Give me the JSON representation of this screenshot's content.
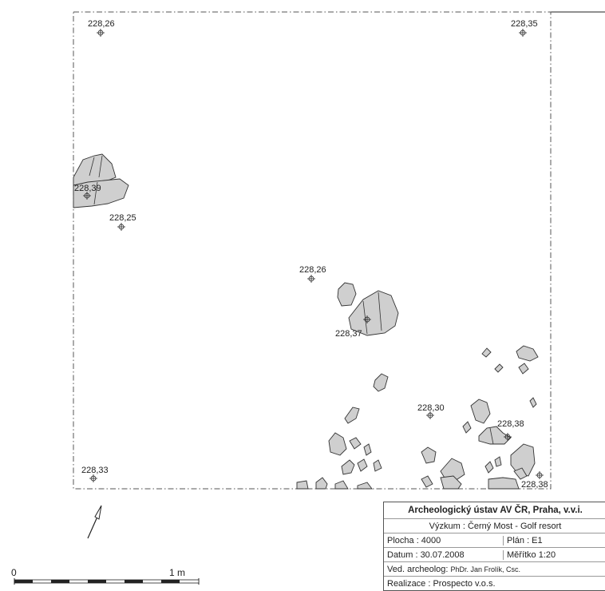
{
  "elevation_points": [
    {
      "label": "228,26"
    },
    {
      "label": "228,35"
    },
    {
      "label": "228,39"
    },
    {
      "label": "228,25"
    },
    {
      "label": "228,26"
    },
    {
      "label": "228,37"
    },
    {
      "label": "228,30"
    },
    {
      "label": "228,38"
    },
    {
      "label": "228,33"
    },
    {
      "label": "228,38"
    }
  ],
  "scale_bar": {
    "start_label": "0",
    "end_label": "1 m"
  },
  "legend": {
    "title": "Archeologický ústav AV ČR, Praha, v.v.i.",
    "project": "Výzkum : Černý Most - Golf resort",
    "area": "Plocha : 4000",
    "plan": "Plán : E1",
    "date": "Datum : 30.07.2008",
    "scale": "Měřítko  1:20",
    "archaeologist_label": "Ved. archeolog:",
    "archaeologist_name": "PhDr. Jan Frolík, Csc.",
    "realization": "Realizace :   Prospecto v.o.s."
  },
  "colors": {
    "stone_fill": "#cfcfcf",
    "outline": "#333333",
    "boundary": "#555555"
  }
}
